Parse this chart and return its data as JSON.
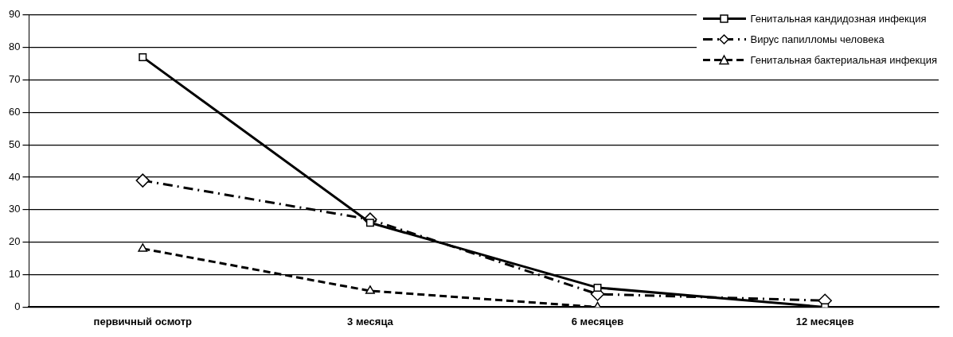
{
  "chart_data": {
    "type": "line",
    "categories": [
      "первичный осмотр",
      "3 месяца",
      "6 месяцев",
      "12 месяцев"
    ],
    "series": [
      {
        "name": "Генитальная кандидозная инфекция",
        "color": "#000000",
        "values": [
          77,
          26,
          6,
          0
        ],
        "marker": "square",
        "line_style": "solid"
      },
      {
        "name": "Вирус папилломы человека",
        "color": "#000000",
        "values": [
          39,
          27,
          4,
          2
        ],
        "marker": "diamond",
        "line_style": "dashed"
      },
      {
        "name": "Генитальная бактериальная инфекция",
        "color": "#000000",
        "values": [
          18,
          5,
          0,
          0
        ],
        "marker": "triangle",
        "line_style": "dashed"
      }
    ],
    "ylim": [
      0,
      90
    ],
    "yticks": [
      0,
      10,
      20,
      30,
      40,
      50,
      60,
      70,
      80,
      90
    ],
    "grid": "y",
    "legend": "top right"
  }
}
